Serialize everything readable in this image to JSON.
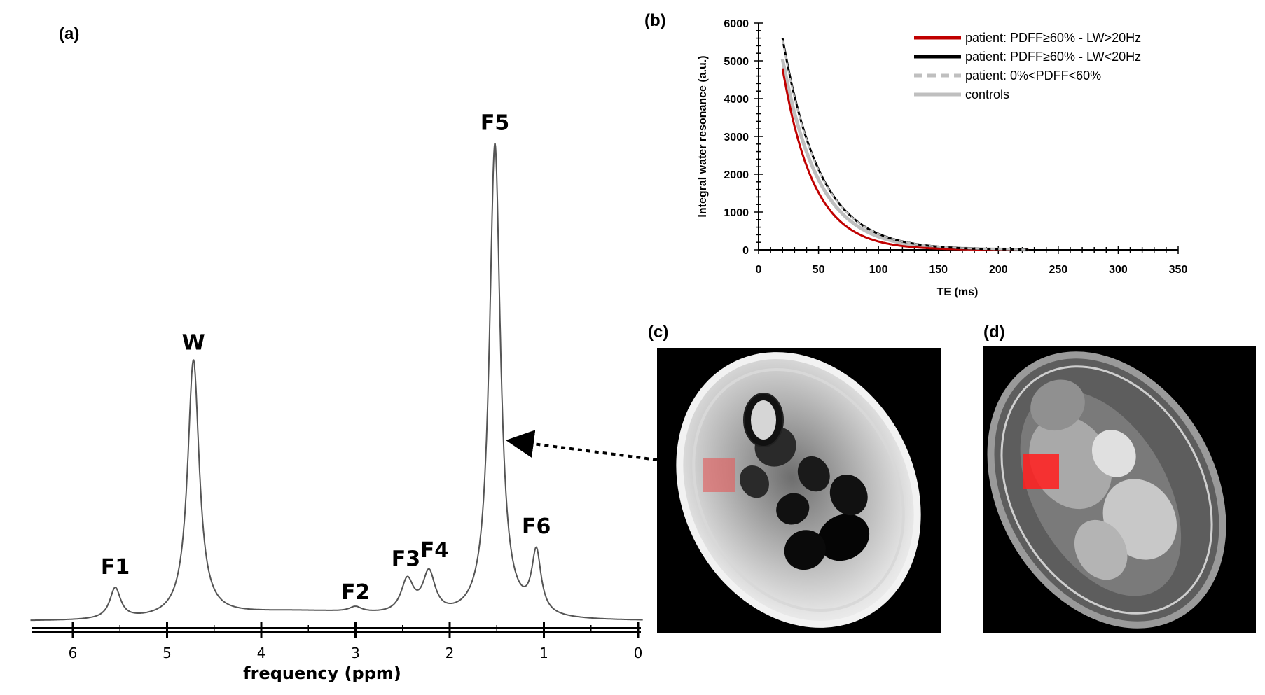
{
  "panels": {
    "a": "(a)",
    "b": "(b)",
    "c": "(c)",
    "d": "(d)"
  },
  "chart_data": [
    {
      "type": "line",
      "panel": "(a)",
      "xlabel": "frequency (ppm)",
      "ylabel": "",
      "x_reversed": true,
      "xlim": [
        6.5,
        0
      ],
      "x_ticks": [
        6,
        5,
        4,
        3,
        2,
        1,
        0
      ],
      "peaks": [
        {
          "label": "F1",
          "ppm": 5.55,
          "height": 0.12,
          "width": 0.07
        },
        {
          "label": "W",
          "ppm": 4.72,
          "height": 1.0,
          "width": 0.075
        },
        {
          "label": "F2",
          "ppm": 3.0,
          "height": 0.02,
          "width": 0.08
        },
        {
          "label": "F3",
          "ppm": 2.45,
          "height": 0.13,
          "width": 0.08
        },
        {
          "label": "F4",
          "ppm": 2.22,
          "height": 0.16,
          "width": 0.08
        },
        {
          "label": "F5",
          "ppm": 1.52,
          "height": 1.85,
          "width": 0.07
        },
        {
          "label": "F6",
          "ppm": 1.08,
          "height": 0.24,
          "width": 0.06
        }
      ]
    },
    {
      "type": "line",
      "panel": "(b)",
      "xlabel": "TE (ms)",
      "ylabel": "Integral water resonance (a.u.)",
      "xlim": [
        0,
        350
      ],
      "ylim": [
        0,
        6000
      ],
      "x_ticks": [
        0,
        50,
        100,
        150,
        200,
        250,
        300,
        350
      ],
      "y_ticks": [
        0,
        1000,
        2000,
        3000,
        4000,
        5000,
        6000
      ],
      "te_range": [
        20,
        225
      ],
      "legend_position": "top-right",
      "series": [
        {
          "name": "patient: PDFF≥60% - LW>20Hz",
          "color": "#c00000",
          "style": "solid",
          "s0": 4800,
          "t0": 20,
          "t2": 26
        },
        {
          "name": "patient: PDFF≥60% - LW<20Hz",
          "color": "#000000",
          "style": "solid",
          "s0": 5600,
          "t0": 20,
          "t2": 31
        },
        {
          "name": "patient: 0%<PDFF<60%",
          "color": "#bfbfbf",
          "style": "dashed",
          "s0": 5550,
          "t0": 20,
          "t2": 31
        },
        {
          "name": "controls",
          "color": "#bfbfbf",
          "style": "solid",
          "s0": 5050,
          "t0": 20,
          "t2": 30
        }
      ]
    }
  ],
  "images": {
    "c": {
      "roi_color": "#e06060"
    },
    "d": {
      "roi_color": "#ff2020"
    }
  }
}
